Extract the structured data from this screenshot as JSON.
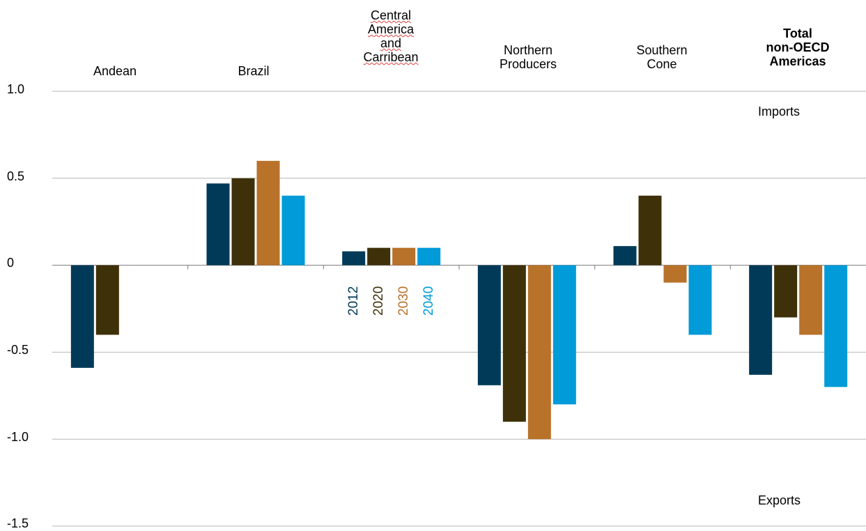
{
  "chart_data": {
    "type": "bar",
    "categories": [
      "Andean",
      "Brazil",
      "Central\nAmerica\nand\nCarribean",
      "Northern\nProducers",
      "Southern\nCone",
      "Total\nnon-OECD\nAmericas"
    ],
    "series": [
      {
        "name": "2012",
        "color": "#003a58",
        "values": [
          -0.59,
          0.47,
          0.08,
          -0.69,
          0.11,
          -0.63
        ]
      },
      {
        "name": "2020",
        "color": "#3e3008",
        "values": [
          -0.4,
          0.5,
          0.1,
          -0.9,
          0.4,
          -0.3
        ]
      },
      {
        "name": "2030",
        "color": "#b8722a",
        "values": [
          null,
          0.6,
          0.1,
          -1.0,
          -0.1,
          -0.4
        ]
      },
      {
        "name": "2040",
        "color": "#009bd8",
        "values": [
          null,
          0.4,
          0.1,
          -0.8,
          -0.4,
          -0.7
        ]
      }
    ],
    "ylim": [
      -1.5,
      1.0
    ],
    "yticks": [
      "1.0",
      "0.5",
      "0",
      "-0.5",
      "-1.0",
      "-1.5"
    ],
    "annotations": {
      "top": "Imports",
      "bottom": "Exports"
    },
    "grid": true,
    "legend_placement": "inside, below Central America and Carribean"
  }
}
